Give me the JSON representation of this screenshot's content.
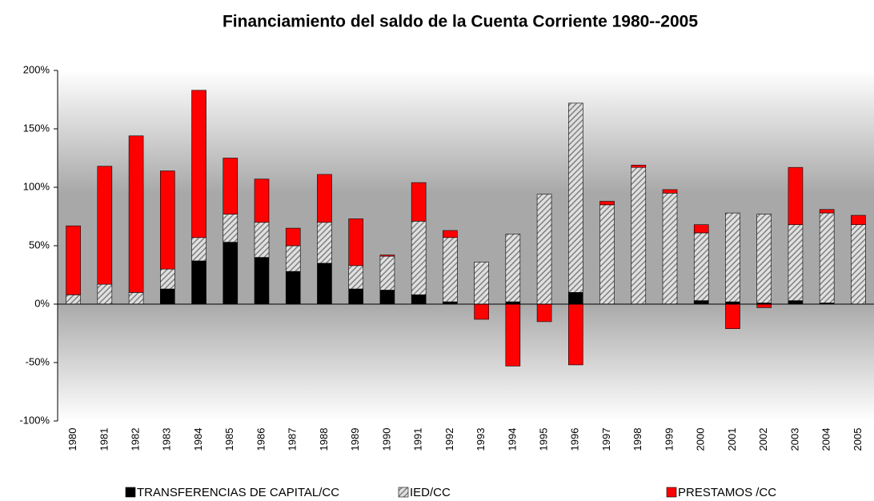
{
  "chart_data": {
    "type": "stacked_bar",
    "title": "Financiamiento del saldo de la Cuenta Corriente 1980--2005",
    "categories": [
      "1980",
      "1981",
      "1982",
      "1983",
      "1984",
      "1985",
      "1986",
      "1987",
      "1988",
      "1989",
      "1990",
      "1991",
      "1992",
      "1993",
      "1994",
      "1995",
      "1996",
      "1997",
      "1998",
      "1999",
      "2000",
      "2001",
      "2002",
      "2003",
      "2004",
      "2005"
    ],
    "series": [
      {
        "name": "TRANSFERENCIAS DE CAPITAL/CC",
        "color": "#000000",
        "values": [
          0,
          0,
          0,
          13,
          37,
          53,
          40,
          28,
          35,
          13,
          12,
          8,
          2,
          0,
          2,
          0,
          10,
          0,
          0,
          0,
          3,
          2,
          1,
          3,
          1,
          0
        ]
      },
      {
        "name": "IED/CC",
        "color": "#808080",
        "hatch": true,
        "values": [
          8,
          17,
          10,
          17,
          20,
          24,
          30,
          22,
          35,
          20,
          29,
          63,
          55,
          36,
          58,
          94,
          162,
          85,
          117,
          95,
          58,
          76,
          76,
          65,
          77,
          68
        ]
      },
      {
        "name": "PRESTAMOS /CC",
        "color": "#ff0000",
        "values": [
          59,
          101,
          134,
          84,
          126,
          48,
          37,
          15,
          41,
          40,
          1,
          33,
          6,
          -13,
          -53,
          -15,
          -52,
          3,
          2,
          3,
          7,
          -21,
          -3,
          49,
          3,
          8
        ]
      }
    ],
    "ylim": [
      -100,
      200
    ],
    "yticks": [
      {
        "value": -100,
        "label": "-100%"
      },
      {
        "value": -50,
        "label": "-50%"
      },
      {
        "value": 0,
        "label": "0%"
      },
      {
        "value": 50,
        "label": "50%"
      },
      {
        "value": 100,
        "label": "100%"
      },
      {
        "value": 150,
        "label": "150%"
      },
      {
        "value": 200,
        "label": "200%"
      }
    ]
  }
}
